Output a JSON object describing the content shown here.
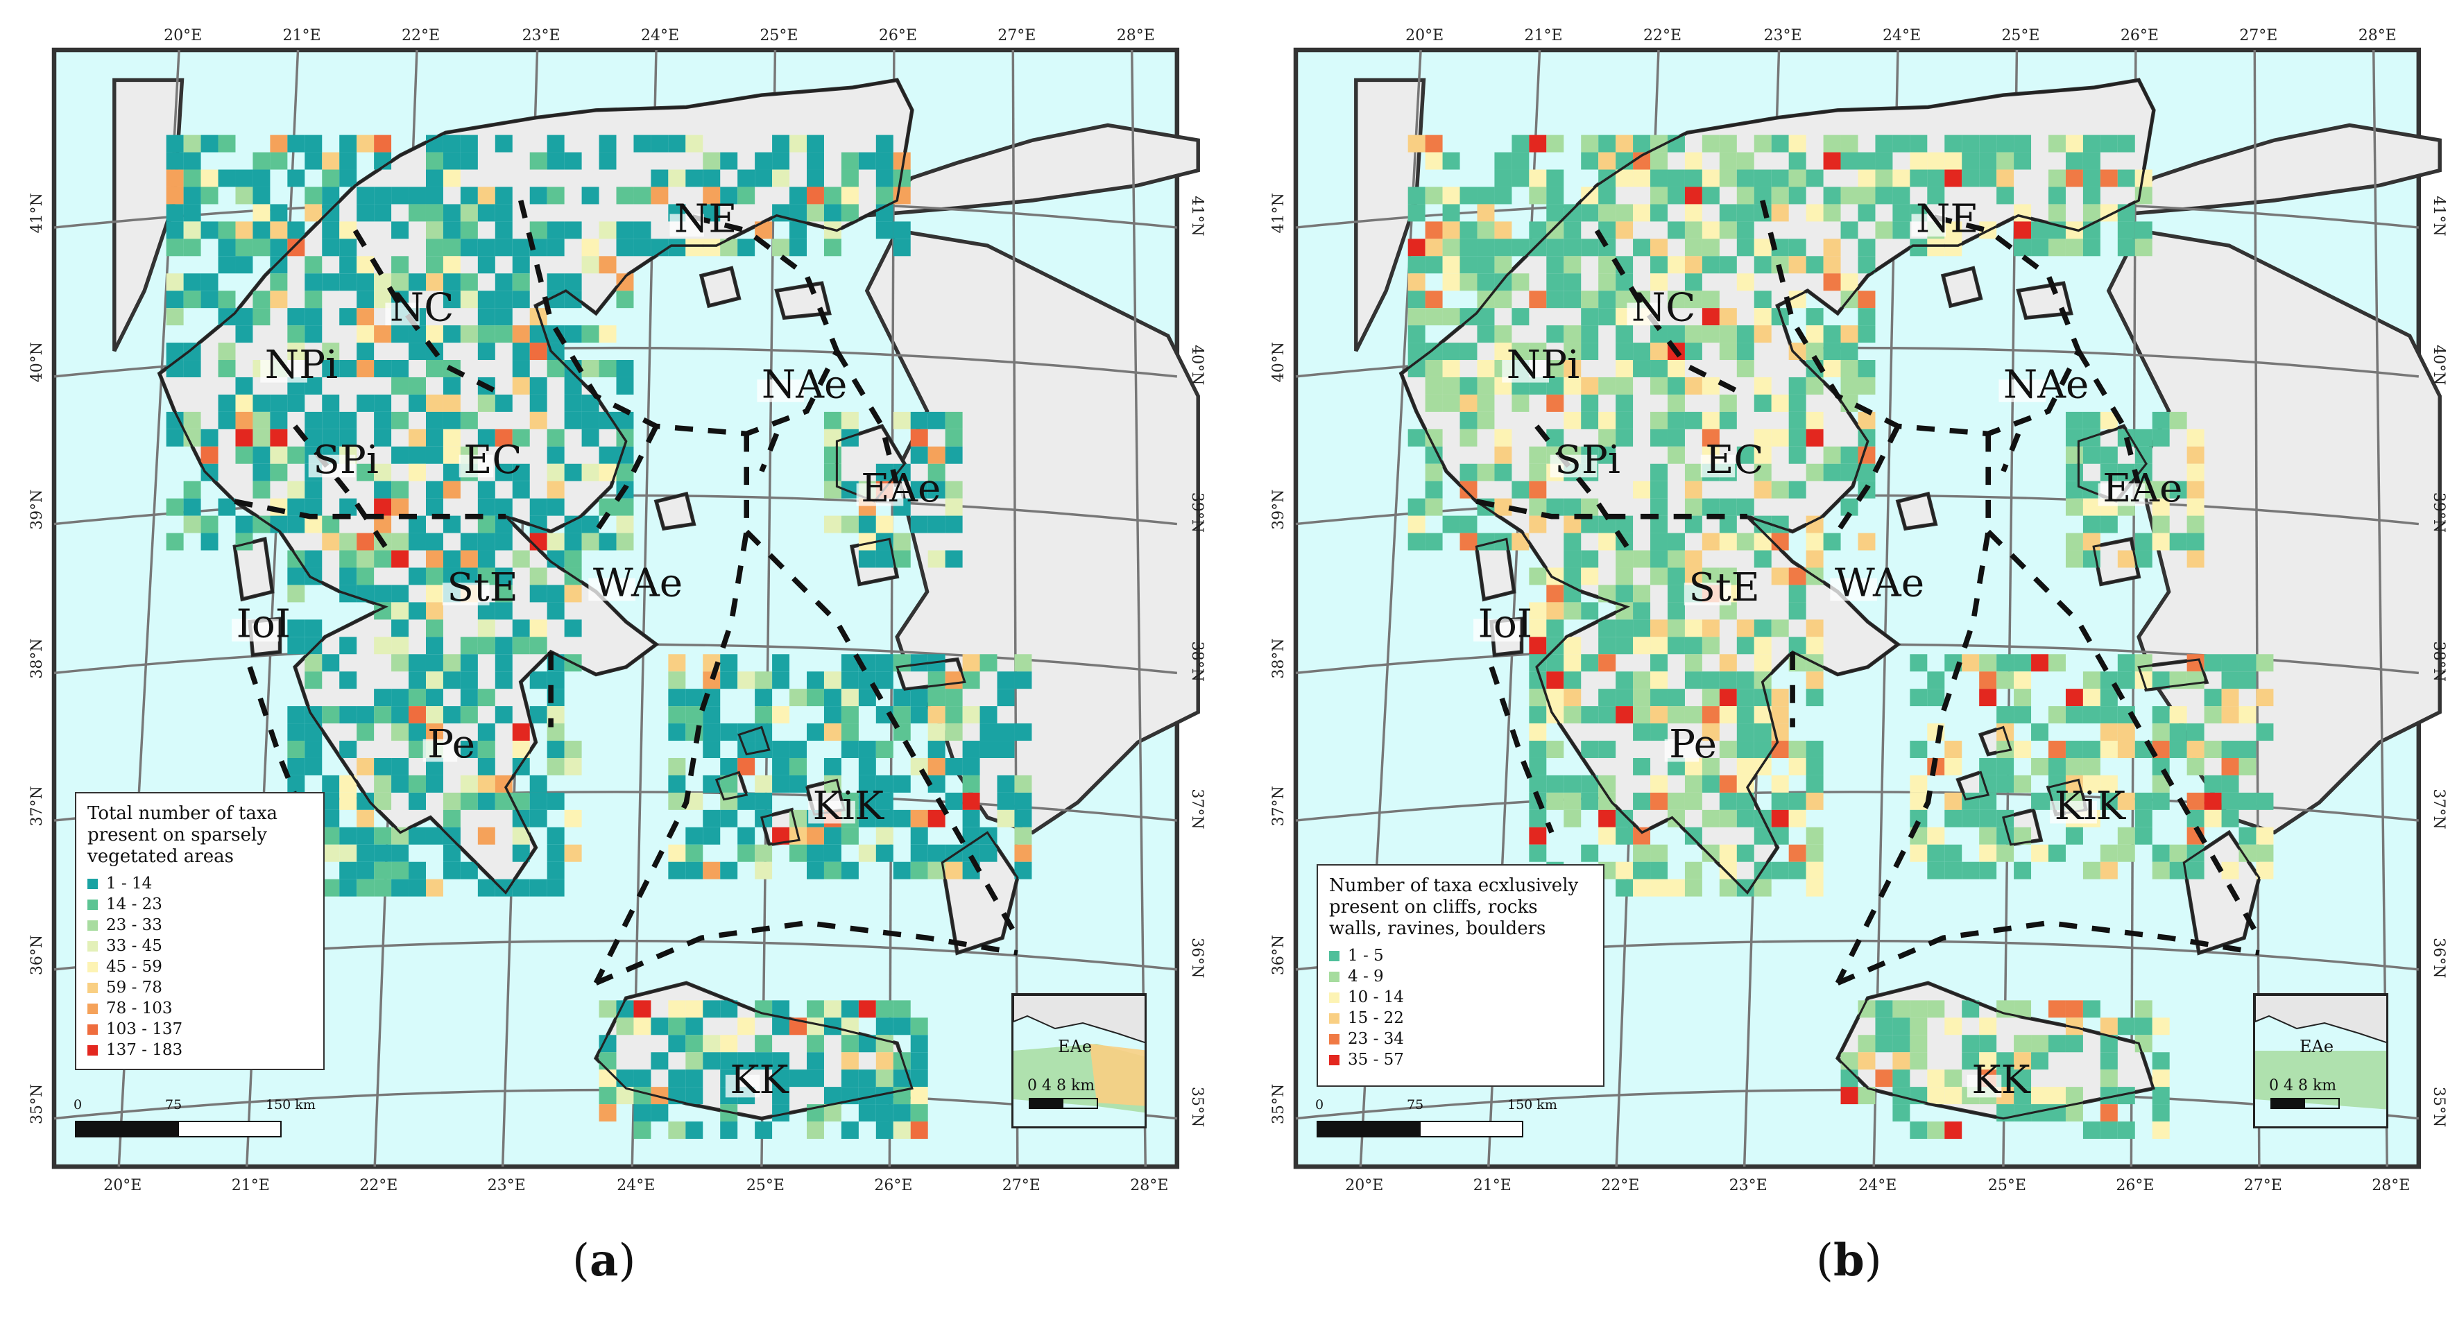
{
  "panels": [
    {
      "id": "a",
      "legend_title_lines": [
        "Total number of taxa",
        "present on sparsely",
        "vegetated areas"
      ],
      "legend": [
        {
          "label": "1 - 14",
          "color": "#1aa3a3"
        },
        {
          "label": "14 - 23",
          "color": "#5cc493"
        },
        {
          "label": "23 - 33",
          "color": "#a8dca0"
        },
        {
          "label": "33 - 45",
          "color": "#e3f0b8"
        },
        {
          "label": "45 - 59",
          "color": "#fdf3b4"
        },
        {
          "label": "59 - 78",
          "color": "#f9cf83"
        },
        {
          "label": "78 - 103",
          "color": "#f5a25a"
        },
        {
          "label": "103 - 137",
          "color": "#ef6d3e"
        },
        {
          "label": "137 - 183",
          "color": "#e3271f"
        }
      ],
      "scale": {
        "ticks": [
          "0",
          "75",
          "150 km"
        ]
      },
      "inset": {
        "label": "EAe",
        "scale_text": "0   4   8 km"
      },
      "caption": {
        "open": "(",
        "letter": "a",
        "close": ")"
      }
    },
    {
      "id": "b",
      "legend_title_lines": [
        "Number of taxa ecxlusively",
        "present on cliffs, rocks",
        "walls, ravines, boulders"
      ],
      "legend": [
        {
          "label": "1 - 5",
          "color": "#4fbf9a"
        },
        {
          "label": "4 - 9",
          "color": "#a6dc9e"
        },
        {
          "label": "10 - 14",
          "color": "#fdf3b4"
        },
        {
          "label": "15 - 22",
          "color": "#f9cf83"
        },
        {
          "label": "23 - 34",
          "color": "#f07a45"
        },
        {
          "label": "35 - 57",
          "color": "#e3271f"
        }
      ],
      "scale": {
        "ticks": [
          "0",
          "75",
          "150 km"
        ]
      },
      "inset": {
        "label": "EAe",
        "scale_text": "0   4   8 km"
      },
      "caption": {
        "open": "(",
        "letter": "b",
        "close": ")"
      }
    }
  ],
  "axes": {
    "top_lon": [
      "20°E",
      "21°E",
      "22°E",
      "23°E",
      "24°E",
      "25°E",
      "26°E",
      "27°E",
      "28°E"
    ],
    "bottom_lon": [
      "20°E",
      "21°E",
      "22°E",
      "23°E",
      "24°E",
      "25°E",
      "26°E",
      "27°E",
      "28°E"
    ],
    "left_lat": [
      "41°N",
      "40°N",
      "39°N",
      "38°N",
      "37°N",
      "36°N",
      "35°N"
    ],
    "right_lat": [
      "41°N",
      "40°N",
      "39°N",
      "38°N",
      "37°N",
      "36°N",
      "35°N"
    ]
  },
  "regions": [
    "NE",
    "NC",
    "NPi",
    "NAe",
    "SPi",
    "EC",
    "EAe",
    "StE",
    "WAe",
    "IoI",
    "Pe",
    "KiK",
    "KK"
  ]
}
